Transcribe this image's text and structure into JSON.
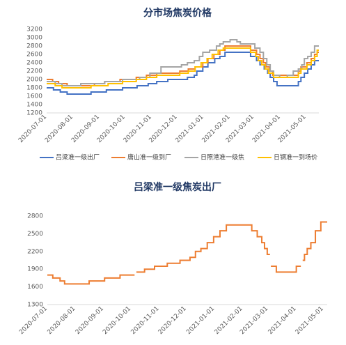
{
  "chart_data": [
    {
      "type": "line",
      "line_style": "step",
      "title": "分市场焦炭价格",
      "xlim": [
        "2020-07-01",
        "2021-05-16"
      ],
      "ylim": [
        1200,
        3200
      ],
      "yticks": [
        1200,
        1400,
        1600,
        1800,
        2000,
        2200,
        2400,
        2600,
        2800,
        3000,
        3200
      ],
      "xticks": [
        "2020-07-01",
        "2020-08-01",
        "2020-09-01",
        "2020-10-01",
        "2020-11-01",
        "2020-12-01",
        "2021-01-01",
        "2021-02-01",
        "2021-03-01",
        "2021-04-01",
        "2021-05-01"
      ],
      "grid": false,
      "legend": "bottom",
      "series": [
        {
          "name": "吕梁准一级出厂",
          "color": "#4472C4",
          "segments": [
            [
              [
                "2020-07-01",
                1800
              ],
              [
                "2020-07-09",
                1750
              ],
              [
                "2020-07-17",
                1700
              ],
              [
                "2020-07-25",
                1650
              ],
              [
                "2020-08-22",
                1700
              ],
              [
                "2020-09-09",
                1750
              ],
              [
                "2020-09-28",
                1800
              ],
              [
                "2020-10-15",
                1850
              ],
              [
                "2020-10-28",
                1900
              ],
              [
                "2020-11-07",
                1950
              ],
              [
                "2020-11-20",
                2000
              ],
              [
                "2020-12-13",
                2050
              ],
              [
                "2020-12-21",
                2100
              ],
              [
                "2020-12-24",
                2200
              ],
              [
                "2020-12-31",
                2300
              ],
              [
                "2021-01-06",
                2400
              ],
              [
                "2021-01-14",
                2500
              ],
              [
                "2021-01-20",
                2550
              ],
              [
                "2021-01-26",
                2650
              ],
              [
                "2021-02-25",
                2550
              ],
              [
                "2021-03-04",
                2450
              ],
              [
                "2021-03-08",
                2350
              ],
              [
                "2021-03-13",
                2250
              ],
              [
                "2021-03-17",
                2150
              ],
              [
                "2021-03-20",
                2050
              ],
              [
                "2021-03-24",
                1950
              ],
              [
                "2021-03-28",
                1850
              ],
              [
                "2021-04-22",
                1950
              ],
              [
                "2021-04-25",
                2050
              ],
              [
                "2021-04-29",
                2150
              ],
              [
                "2021-05-03",
                2250
              ],
              [
                "2021-05-07",
                2350
              ],
              [
                "2021-05-11",
                2450
              ],
              [
                "2021-05-16",
                2450
              ]
            ]
          ]
        },
        {
          "name": "唐山准一级到厂",
          "color": "#ED7D31",
          "segments": [
            [
              [
                "2020-07-01",
                2000
              ],
              [
                "2020-07-08",
                1950
              ],
              [
                "2020-07-15",
                1900
              ],
              [
                "2020-07-25",
                1850
              ],
              [
                "2020-08-26",
                1900
              ],
              [
                "2020-09-07",
                1950
              ],
              [
                "2020-09-25",
                2000
              ],
              [
                "2020-10-14",
                2050
              ],
              [
                "2020-10-26",
                2100
              ],
              [
                "2020-11-07",
                2150
              ],
              [
                "2020-12-04",
                2200
              ],
              [
                "2020-12-14",
                2250
              ],
              [
                "2020-12-22",
                2300
              ],
              [
                "2020-12-31",
                2400
              ],
              [
                "2021-01-06",
                2500
              ],
              [
                "2021-01-13",
                2600
              ],
              [
                "2021-01-20",
                2700
              ],
              [
                "2021-01-26",
                2800
              ],
              [
                "2021-02-25",
                2700
              ],
              [
                "2021-03-04",
                2600
              ],
              [
                "2021-03-08",
                2500
              ],
              [
                "2021-03-12",
                2400
              ],
              [
                "2021-03-15",
                2300
              ],
              [
                "2021-03-19",
                2200
              ],
              [
                "2021-03-23",
                2100
              ],
              [
                "2021-04-22",
                2200
              ],
              [
                "2021-04-25",
                2300
              ],
              [
                "2021-05-02",
                2400
              ],
              [
                "2021-05-07",
                2500
              ],
              [
                "2021-05-11",
                2600
              ],
              [
                "2021-05-14",
                2650
              ],
              [
                "2021-05-16",
                2650
              ]
            ]
          ]
        },
        {
          "name": "日照港准一级焦",
          "color": "#A5A5A5",
          "segments": [
            [
              [
                "2020-07-01",
                1950
              ],
              [
                "2020-07-11",
                1900
              ],
              [
                "2020-07-19",
                1850
              ],
              [
                "2020-08-10",
                1900
              ],
              [
                "2020-09-07",
                1950
              ],
              [
                "2020-09-28",
                2000
              ],
              [
                "2020-10-18",
                2050
              ],
              [
                "2020-10-30",
                2150
              ],
              [
                "2020-11-12",
                2300
              ],
              [
                "2020-12-06",
                2350
              ],
              [
                "2020-12-13",
                2400
              ],
              [
                "2020-12-21",
                2450
              ],
              [
                "2020-12-27",
                2550
              ],
              [
                "2020-12-31",
                2650
              ],
              [
                "2021-01-08",
                2700
              ],
              [
                "2021-01-16",
                2800
              ],
              [
                "2021-01-20",
                2850
              ],
              [
                "2021-01-24",
                2900
              ],
              [
                "2021-02-01",
                2950
              ],
              [
                "2021-02-09",
                2900
              ],
              [
                "2021-02-13",
                2850
              ],
              [
                "2021-03-02",
                2750
              ],
              [
                "2021-03-08",
                2650
              ],
              [
                "2021-03-12",
                2500
              ],
              [
                "2021-03-16",
                2350
              ],
              [
                "2021-03-20",
                2200
              ],
              [
                "2021-03-24",
                2100
              ],
              [
                "2021-03-31",
                2050
              ],
              [
                "2021-04-09",
                2100
              ],
              [
                "2021-04-16",
                2200
              ],
              [
                "2021-04-22",
                2250
              ],
              [
                "2021-04-26",
                2350
              ],
              [
                "2021-04-29",
                2500
              ],
              [
                "2021-05-03",
                2550
              ],
              [
                "2021-05-07",
                2650
              ],
              [
                "2021-05-11",
                2800
              ],
              [
                "2021-05-16",
                2800
              ]
            ]
          ]
        },
        {
          "name": "日钢准一到场价",
          "color": "#FFC000",
          "segments": [
            [
              [
                "2020-07-01",
                1900
              ],
              [
                "2020-07-11",
                1850
              ],
              [
                "2020-07-19",
                1800
              ],
              [
                "2020-08-22",
                1850
              ],
              [
                "2020-09-11",
                1900
              ],
              [
                "2020-09-28",
                1950
              ],
              [
                "2020-10-14",
                2000
              ],
              [
                "2020-10-26",
                2050
              ],
              [
                "2020-11-07",
                2100
              ],
              [
                "2020-12-04",
                2150
              ],
              [
                "2020-12-14",
                2200
              ],
              [
                "2020-12-22",
                2300
              ],
              [
                "2020-12-29",
                2400
              ],
              [
                "2021-01-05",
                2500
              ],
              [
                "2021-01-11",
                2600
              ],
              [
                "2021-01-18",
                2700
              ],
              [
                "2021-01-24",
                2750
              ],
              [
                "2021-02-25",
                2650
              ],
              [
                "2021-03-03",
                2550
              ],
              [
                "2021-03-06",
                2450
              ],
              [
                "2021-03-10",
                2350
              ],
              [
                "2021-03-14",
                2250
              ],
              [
                "2021-03-18",
                2150
              ],
              [
                "2021-03-24",
                2050
              ],
              [
                "2021-04-22",
                2150
              ],
              [
                "2021-04-25",
                2250
              ],
              [
                "2021-05-02",
                2350
              ],
              [
                "2021-05-07",
                2450
              ],
              [
                "2021-05-11",
                2550
              ],
              [
                "2021-05-14",
                2700
              ],
              [
                "2021-05-16",
                2700
              ]
            ]
          ]
        }
      ]
    },
    {
      "type": "line",
      "line_style": "step",
      "title": "吕梁准一级焦炭出厂",
      "xlim": [
        "2020-07-01",
        "2021-05-05"
      ],
      "ylim": [
        1300,
        2800
      ],
      "yticks": [
        1300,
        1600,
        1900,
        2200,
        2500,
        2800
      ],
      "xticks": [
        "2020-07-01",
        "2020-08-01",
        "2020-09-01",
        "2020-10-01",
        "2020-11-01",
        "2020-12-01",
        "2021-01-01",
        "2021-02-01",
        "2021-03-01",
        "2021-04-01",
        "2021-05-01"
      ],
      "grid": false,
      "legend": "none",
      "series": [
        {
          "color": "#ED7D31",
          "segments": [
            [
              [
                "2020-07-01",
                1800
              ],
              [
                "2020-07-07",
                1750
              ],
              [
                "2020-07-15",
                1700
              ],
              [
                "2020-07-20",
                1650
              ],
              [
                "2020-08-16",
                1700
              ],
              [
                "2020-09-02",
                1750
              ],
              [
                "2020-09-19",
                1800
              ],
              [
                "2020-10-05",
                1800
              ]
            ],
            [
              [
                "2020-10-07",
                1850
              ],
              [
                "2020-10-16",
                1900
              ],
              [
                "2020-10-27",
                1950
              ],
              [
                "2020-11-10",
                2000
              ],
              [
                "2020-11-24",
                2050
              ],
              [
                "2020-12-05",
                2100
              ],
              [
                "2020-12-11",
                2200
              ],
              [
                "2020-12-17",
                2250
              ],
              [
                "2020-12-24",
                2350
              ],
              [
                "2020-12-31",
                2450
              ],
              [
                "2021-01-07",
                2550
              ],
              [
                "2021-01-14",
                2650
              ],
              [
                "2021-02-11",
                2550
              ],
              [
                "2021-02-17",
                2450
              ],
              [
                "2021-02-22",
                2350
              ],
              [
                "2021-02-25",
                2250
              ],
              [
                "2021-02-28",
                2150
              ],
              [
                "2021-03-03",
                2150
              ]
            ],
            [
              [
                "2021-03-04",
                1950
              ],
              [
                "2021-03-10",
                1850
              ],
              [
                "2021-04-01",
                1950
              ],
              [
                "2021-04-06",
                1950
              ]
            ],
            [
              [
                "2021-04-08",
                2050
              ],
              [
                "2021-04-10",
                2150
              ],
              [
                "2021-04-13",
                2250
              ],
              [
                "2021-04-17",
                2350
              ],
              [
                "2021-04-22",
                2550
              ],
              [
                "2021-04-28",
                2700
              ],
              [
                "2021-05-05",
                2700
              ]
            ]
          ]
        }
      ]
    }
  ]
}
